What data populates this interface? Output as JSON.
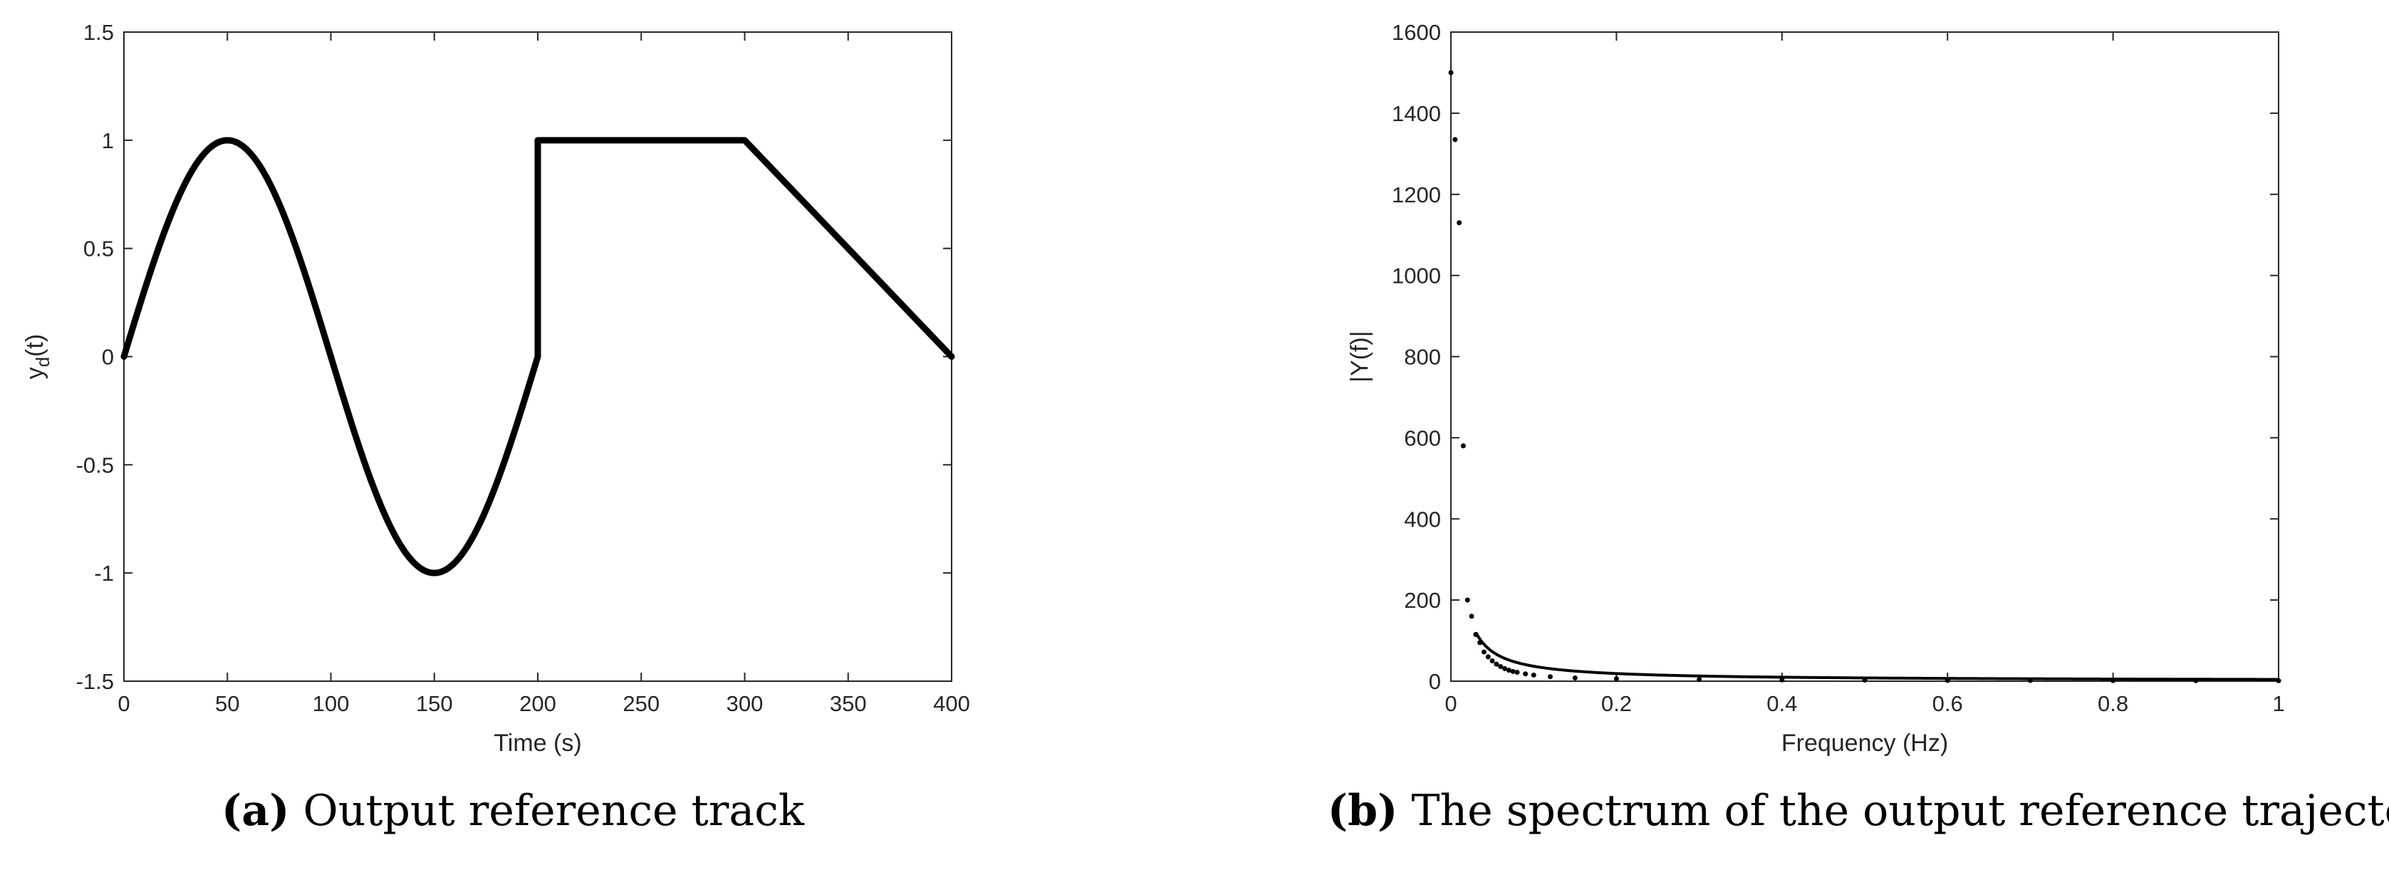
{
  "chart_data": [
    {
      "type": "line",
      "title": "",
      "xlabel": "Time (s)",
      "ylabel_main": "y",
      "ylabel_sub": "d",
      "ylabel_rest": "(t)",
      "xlim": [
        0,
        400
      ],
      "ylim": [
        -1.5,
        1.5
      ],
      "x_ticks": [
        "0",
        "50",
        "100",
        "150",
        "200",
        "250",
        "300",
        "350",
        "400"
      ],
      "y_ticks": [
        "-1.5",
        "-1",
        "-0.5",
        "0",
        "0.5",
        "1",
        "1.5"
      ],
      "grid": false,
      "line_color": "#000000",
      "series": [
        {
          "segments": [
            {
              "kind": "sine",
              "x_start": 0,
              "x_end": 200,
              "amplitude": 1,
              "period": 200
            },
            {
              "kind": "points",
              "x": [
                200,
                200,
                300,
                400
              ],
              "y": [
                0,
                1,
                1,
                0
              ]
            }
          ]
        }
      ],
      "caption_letter": "(a)",
      "caption_text": " Output reference track"
    },
    {
      "type": "scatter",
      "title": "",
      "xlabel": "Frequency (Hz)",
      "ylabel": "|Y(f)|",
      "xlim": [
        0,
        1
      ],
      "ylim": [
        0,
        1600
      ],
      "x_ticks": [
        "0",
        "0.2",
        "0.4",
        "0.6",
        "0.8",
        "1"
      ],
      "y_ticks": [
        "0",
        "200",
        "400",
        "600",
        "800",
        "1000",
        "1200",
        "1400",
        "1600"
      ],
      "grid": false,
      "marker_color": "#000000",
      "series": [
        {
          "x": [
            0.0,
            0.005,
            0.01,
            0.015,
            0.02,
            0.025,
            0.03,
            0.035,
            0.04,
            0.045,
            0.05,
            0.055,
            0.06,
            0.065,
            0.07,
            0.075,
            0.08,
            0.09,
            0.1,
            0.12,
            0.15,
            0.2,
            0.3,
            0.4,
            0.5,
            0.6,
            0.7,
            0.8,
            0.9,
            1.0
          ],
          "y": [
            1500,
            1335,
            1130,
            580,
            200,
            160,
            115,
            95,
            72,
            60,
            50,
            42,
            36,
            31,
            27,
            24,
            22,
            18,
            15,
            11,
            8,
            6,
            4,
            3,
            2.5,
            2,
            1.7,
            1.5,
            1.3,
            1.2
          ]
        }
      ],
      "caption_letter": "(b)",
      "caption_text": " The spectrum of the output reference trajectory"
    }
  ]
}
